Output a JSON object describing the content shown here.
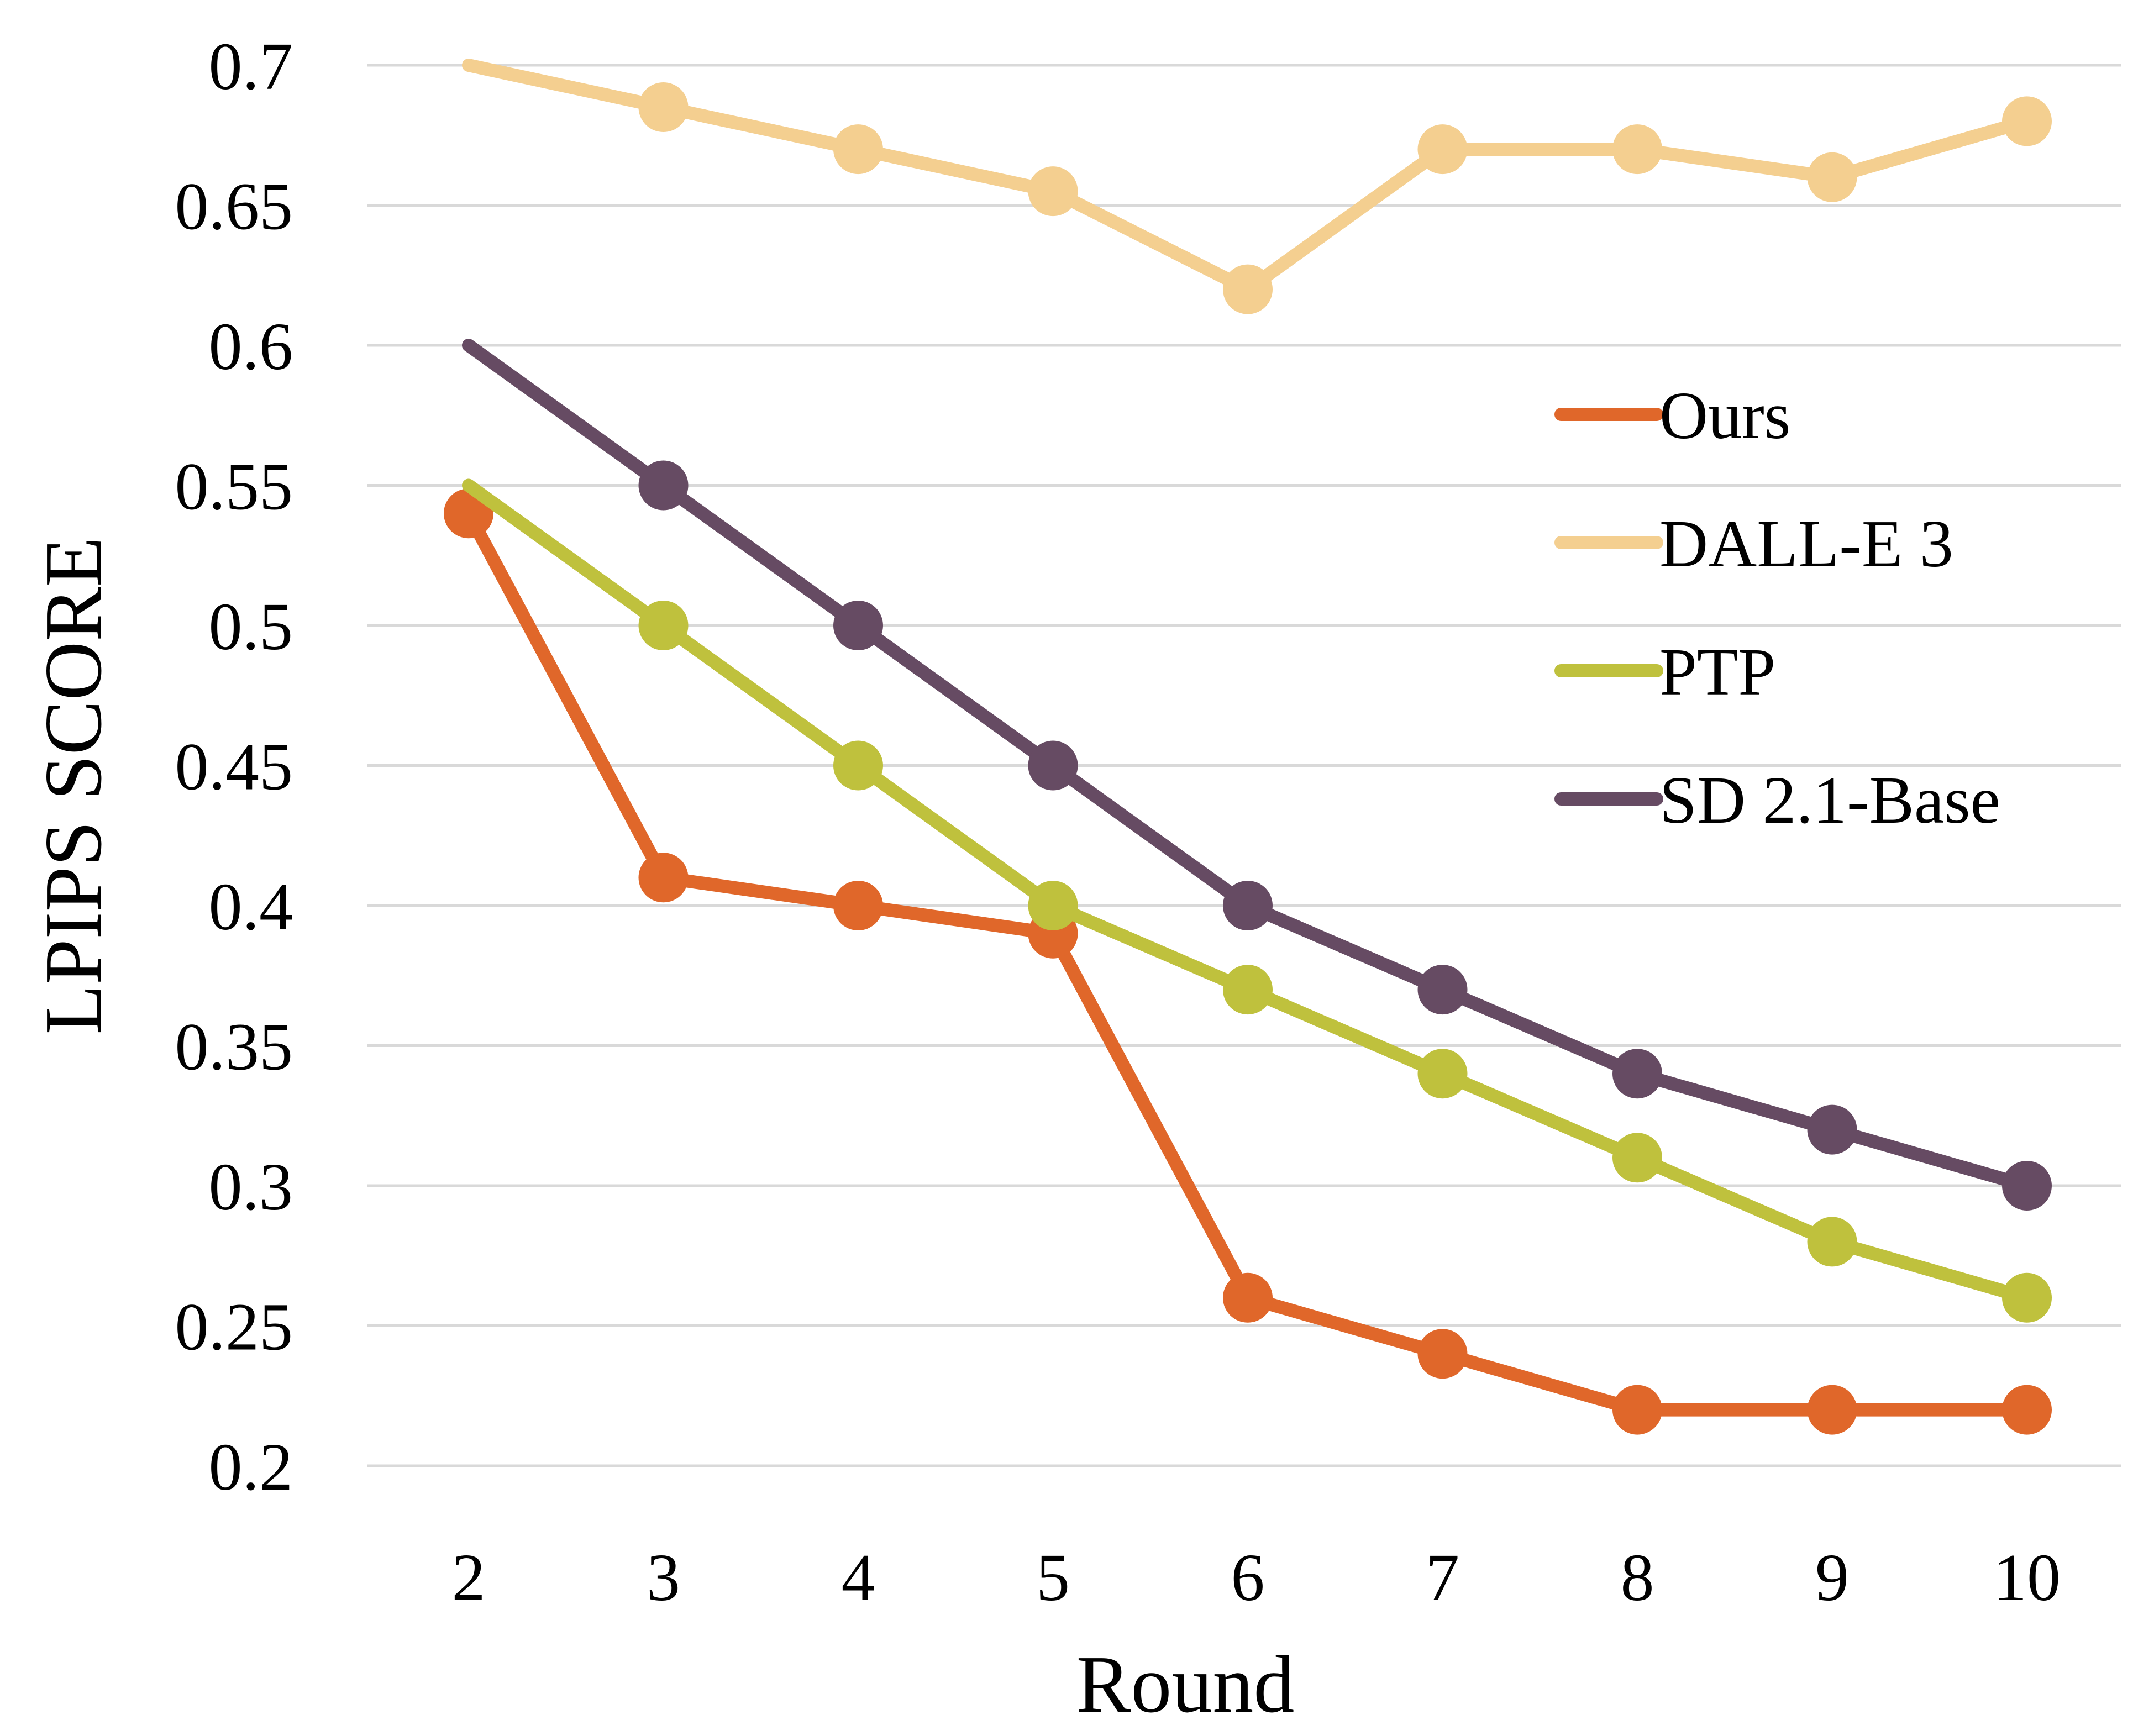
{
  "chart_data": {
    "type": "line",
    "title": "",
    "xlabel": "Round",
    "ylabel": "LPIPS SCORE",
    "x": [
      2,
      3,
      4,
      5,
      6,
      7,
      8,
      9,
      10
    ],
    "x_tick_labels": [
      "2",
      "3",
      "4",
      "5",
      "6",
      "7",
      "8",
      "9",
      "10"
    ],
    "ylim": [
      0.2,
      0.7
    ],
    "y_ticks": [
      0.2,
      0.25,
      0.3,
      0.35,
      0.4,
      0.45,
      0.5,
      0.55,
      0.6,
      0.65,
      0.7
    ],
    "y_tick_labels": [
      "0.2",
      "0.25",
      "0.3",
      "0.35",
      "0.4",
      "0.45",
      "0.5",
      "0.55",
      "0.6",
      "0.65",
      "0.7"
    ],
    "grid": "horizontal",
    "legend_position": "right",
    "series": [
      {
        "name": "Ours",
        "color": "#E0672A",
        "values": [
          0.54,
          0.41,
          0.4,
          0.39,
          0.26,
          0.24,
          0.22,
          0.22,
          0.22
        ],
        "markers": [
          true,
          true,
          true,
          true,
          true,
          true,
          true,
          true,
          true
        ]
      },
      {
        "name": "DALL-E 3",
        "color": "#F4CF90",
        "values": [
          0.7,
          0.685,
          0.67,
          0.655,
          0.62,
          0.67,
          0.67,
          0.66,
          0.68
        ],
        "markers": [
          false,
          true,
          true,
          true,
          true,
          true,
          true,
          true,
          true
        ]
      },
      {
        "name": "PTP",
        "color": "#BFC13D",
        "values": [
          0.55,
          0.5,
          0.45,
          0.4,
          0.37,
          0.34,
          0.31,
          0.28,
          0.26
        ],
        "markers": [
          false,
          true,
          true,
          true,
          true,
          true,
          true,
          true,
          true
        ]
      },
      {
        "name": "SD 2.1-Base",
        "color": "#664B63",
        "values": [
          0.6,
          0.55,
          0.5,
          0.45,
          0.4,
          0.37,
          0.34,
          0.32,
          0.3
        ],
        "markers": [
          false,
          true,
          true,
          true,
          true,
          true,
          true,
          true,
          true
        ]
      }
    ]
  }
}
